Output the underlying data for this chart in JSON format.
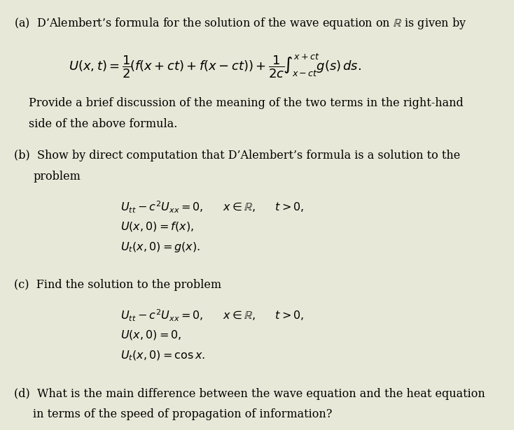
{
  "background_color": "#e8e8d8",
  "text_color": "#000000",
  "figsize": [
    7.34,
    6.15
  ],
  "dpi": 100,
  "part_a_header": "(a)  D’Alembert’s formula for the solution of the wave equation on $\\mathbb{R}$ is given by",
  "part_a_formula": "$U(x,t) = \\dfrac{1}{2}\\left(f(x+ct) + f(x-ct)\\right) + \\dfrac{1}{2c}\\displaystyle\\int_{x-ct}^{x+ct} g(s)\\,ds.$",
  "part_a_body": "Provide a brief discussion of the meaning of the two terms in the right-hand\nside of the above formula.",
  "part_b_header": "(b)  Show by direct computation that D’Alembert’s formula is a solution to the\n      problem",
  "part_b_line1": "$U_{tt} - c^2 U_{xx} = 0, \\quad x \\in \\mathbb{R}, \\quad t > 0,$",
  "part_b_line2": "$U(x,0) = f(x),$",
  "part_b_line3": "$U_t(x,0) = g(x).$",
  "part_c_header": "(c)  Find the solution to the problem",
  "part_c_line1": "$U_{tt} - c^2 U_{xx} = 0, \\quad x \\in \\mathbb{R}, \\quad t > 0,$",
  "part_c_line2": "$U(x,0) = 0,$",
  "part_c_line3": "$U_t(x,0) = \\cos x.$",
  "part_d_header": "(d)  What is the main difference between the wave equation and the heat equation\n      in terms of the speed of propagation of information?"
}
